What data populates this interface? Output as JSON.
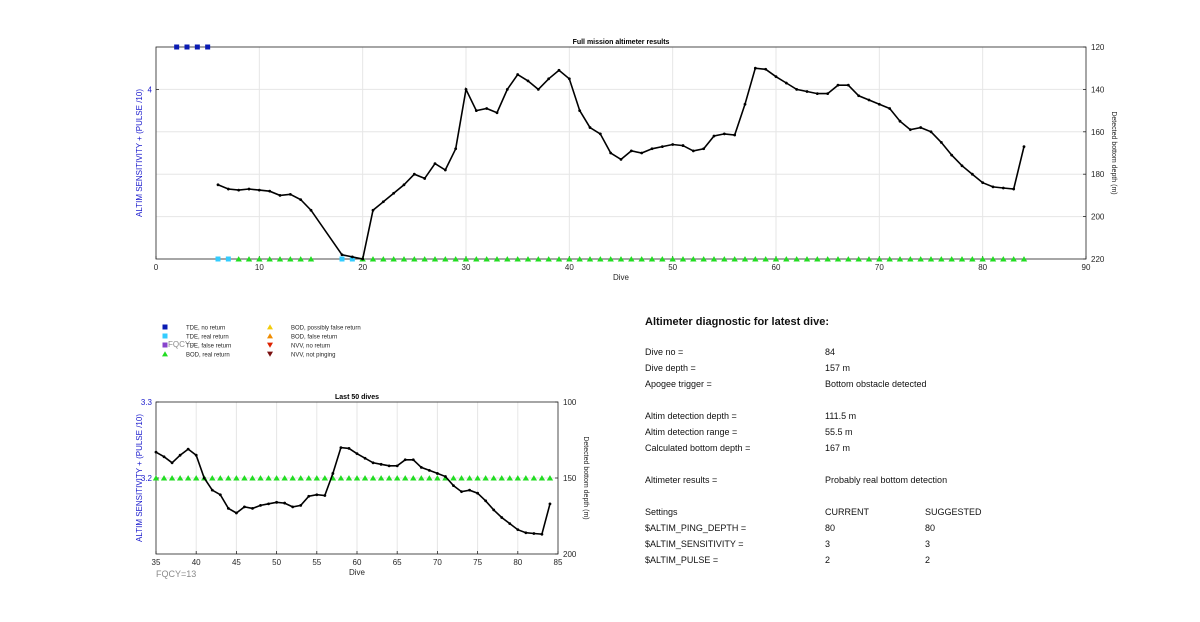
{
  "chart_data": [
    {
      "type": "line",
      "title": "Full mission altimeter results",
      "xlabel": "Dive",
      "ylabel_left": "ALTIM SENSITIVITY + (PULSE /10)",
      "ylabel_right": "Detected bottom depth (m)",
      "xlim": [
        0,
        90
      ],
      "xticks": [
        "0",
        "10",
        "20",
        "30",
        "40",
        "50",
        "60",
        "70",
        "80",
        "90"
      ],
      "left_ticks": [
        {
          "label": "4",
          "frac": 0.8
        }
      ],
      "ylim_right": [
        120,
        220
      ],
      "yticks_right": [
        "120",
        "140",
        "160",
        "180",
        "200",
        "220"
      ],
      "right_reversed": true,
      "grid": true,
      "series": [
        {
          "name": "Detected bottom depth",
          "axis": "right",
          "color": "#000000",
          "x": [
            6,
            7,
            8,
            9,
            10,
            11,
            12,
            13,
            14,
            15,
            18,
            19,
            20,
            21,
            22,
            23,
            24,
            25,
            26,
            27,
            28,
            29,
            30,
            31,
            32,
            33,
            34,
            35,
            36,
            37,
            38,
            39,
            40,
            41,
            42,
            43,
            44,
            45,
            46,
            47,
            48,
            49,
            50,
            51,
            52,
            53,
            54,
            55,
            56,
            57,
            58,
            59,
            60,
            61,
            62,
            63,
            64,
            65,
            66,
            67,
            68,
            69,
            70,
            71,
            72,
            73,
            74,
            75,
            76,
            77,
            78,
            79,
            80,
            81,
            82,
            83,
            84
          ],
          "y": [
            185,
            187,
            187.5,
            187,
            187.5,
            188,
            190,
            189.5,
            192,
            197,
            218,
            219,
            220,
            197,
            193,
            189,
            185,
            180,
            182,
            175,
            178,
            168,
            140,
            150,
            149,
            151,
            140,
            133,
            136,
            140,
            135,
            131,
            135,
            150,
            158,
            161,
            170,
            173,
            169,
            170,
            168,
            167,
            166,
            166.5,
            169,
            168,
            162,
            161,
            161.5,
            147,
            130,
            130.5,
            134,
            137,
            140,
            141,
            142,
            142,
            138,
            138,
            143,
            145,
            147,
            149,
            155,
            159,
            158,
            160,
            165,
            171,
            176,
            180,
            184,
            186,
            186.5,
            187,
            167
          ]
        }
      ],
      "markers": [
        {
          "label": "TDE, no return",
          "color": "#0a1bb3",
          "shape": "square",
          "x": [
            2,
            3,
            4,
            5
          ],
          "level": "top"
        },
        {
          "label": "TDE, real return",
          "color": "#33ccff",
          "shape": "square",
          "x": [
            6,
            7,
            18,
            19
          ],
          "level": "bottom"
        },
        {
          "label": "BOD, real return",
          "color": "#22dd22",
          "shape": "triangle",
          "x": [
            8,
            9,
            10,
            11,
            12,
            13,
            14,
            15,
            20,
            21,
            22,
            23,
            24,
            25,
            26,
            27,
            28,
            29,
            30,
            31,
            32,
            33,
            34,
            35,
            36,
            37,
            38,
            39,
            40,
            41,
            42,
            43,
            44,
            45,
            46,
            47,
            48,
            49,
            50,
            51,
            52,
            53,
            54,
            55,
            56,
            57,
            58,
            59,
            60,
            61,
            62,
            63,
            64,
            65,
            66,
            67,
            68,
            69,
            70,
            71,
            72,
            73,
            74,
            75,
            76,
            77,
            78,
            79,
            80,
            81,
            82,
            83,
            84
          ],
          "level": "bottom"
        }
      ]
    },
    {
      "type": "line",
      "title": "Last 50 dives",
      "xlabel": "Dive",
      "ylabel_left": "ALTIM SENSITIVITY + (PULSE /10)",
      "ylabel_right": "Detected bottom depth (m)",
      "xlim": [
        35,
        85
      ],
      "xticks": [
        "35",
        "40",
        "45",
        "50",
        "55",
        "60",
        "65",
        "70",
        "75",
        "80",
        "85"
      ],
      "ylim_left": [
        3.2,
        3.3
      ],
      "left_ticks": [
        {
          "label": "3.3",
          "frac": 1
        },
        {
          "label": "3.2",
          "frac": 0.5
        }
      ],
      "ylim_right": [
        100,
        200
      ],
      "yticks_right": [
        "100",
        "150",
        "200"
      ],
      "right_reversed": true,
      "grid": true,
      "series": [
        {
          "name": "Detected bottom depth",
          "axis": "right",
          "color": "#000000",
          "x": [
            35,
            36,
            37,
            38,
            39,
            40,
            41,
            42,
            43,
            44,
            45,
            46,
            47,
            48,
            49,
            50,
            51,
            52,
            53,
            54,
            55,
            56,
            57,
            58,
            59,
            60,
            61,
            62,
            63,
            64,
            65,
            66,
            67,
            68,
            69,
            70,
            71,
            72,
            73,
            74,
            75,
            76,
            77,
            78,
            79,
            80,
            81,
            82,
            83,
            84
          ],
          "y": [
            133,
            136,
            140,
            135,
            131,
            135,
            150,
            158,
            161,
            170,
            173,
            169,
            170,
            168,
            167,
            166,
            166.5,
            169,
            168,
            162,
            161,
            161.5,
            147,
            130,
            130.5,
            134,
            137,
            140,
            141,
            142,
            142,
            138,
            138,
            143,
            145,
            147,
            149,
            155,
            159,
            158,
            160,
            165,
            171,
            176,
            180,
            184,
            186,
            186.5,
            187,
            167
          ]
        }
      ],
      "markers": [
        {
          "label": "BOD, real return",
          "color": "#22dd22",
          "shape": "triangle",
          "x": [
            35,
            36,
            37,
            38,
            39,
            40,
            41,
            42,
            43,
            44,
            45,
            46,
            47,
            48,
            49,
            50,
            51,
            52,
            53,
            54,
            55,
            56,
            57,
            58,
            59,
            60,
            61,
            62,
            63,
            64,
            65,
            66,
            67,
            68,
            69,
            70,
            71,
            72,
            73,
            74,
            75,
            76,
            77,
            78,
            79,
            80,
            81,
            82,
            83,
            84
          ],
          "level": "mid"
        }
      ]
    }
  ],
  "legend": [
    {
      "label": "TDE, no return",
      "color": "#0a1bb3",
      "shape": "square"
    },
    {
      "label": "TDE, real return",
      "color": "#33ccff",
      "shape": "square"
    },
    {
      "label": "TDE, false return",
      "color": "#8844cc",
      "shape": "square"
    },
    {
      "label": "BOD, real return",
      "color": "#22dd22",
      "shape": "triangle"
    },
    {
      "label": "BOD, possibly false return",
      "color": "#f2cc0c",
      "shape": "triangle"
    },
    {
      "label": "BOD, false return",
      "color": "#f08c00",
      "shape": "triangle"
    },
    {
      "label": "NVV, no return",
      "color": "#dd2200",
      "shape": "triangle-down"
    },
    {
      "label": "NVV, not pinging",
      "color": "#7a1010",
      "shape": "triangle-down"
    }
  ],
  "fqcy_ghost": "FQCY=",
  "fqcy": "FQCY=13",
  "diagnostic": {
    "title": "Altimeter diagnostic for latest dive:",
    "rows": [
      {
        "label": "Dive no =",
        "value": "84"
      },
      {
        "label": "Dive depth =",
        "value": "157 m"
      },
      {
        "label": "Apogee trigger =",
        "value": "Bottom obstacle detected"
      },
      {
        "label": "Altim detection depth =",
        "value": "111.5 m"
      },
      {
        "label": "Altim detection range =",
        "value": "55.5 m"
      },
      {
        "label": "Calculated bottom depth =",
        "value": "167 m"
      },
      {
        "label": "Altimeter results =",
        "value": "Probably real bottom detection"
      }
    ],
    "settings_header": {
      "label": "Settings",
      "current": "CURRENT",
      "suggested": "SUGGESTED"
    },
    "settings": [
      {
        "label": "$ALTIM_PING_DEPTH =",
        "current": "80",
        "suggested": "80"
      },
      {
        "label": "$ALTIM_SENSITIVITY =",
        "current": "3",
        "suggested": "3"
      },
      {
        "label": "$ALTIM_PULSE =",
        "current": "2",
        "suggested": "2"
      }
    ]
  }
}
